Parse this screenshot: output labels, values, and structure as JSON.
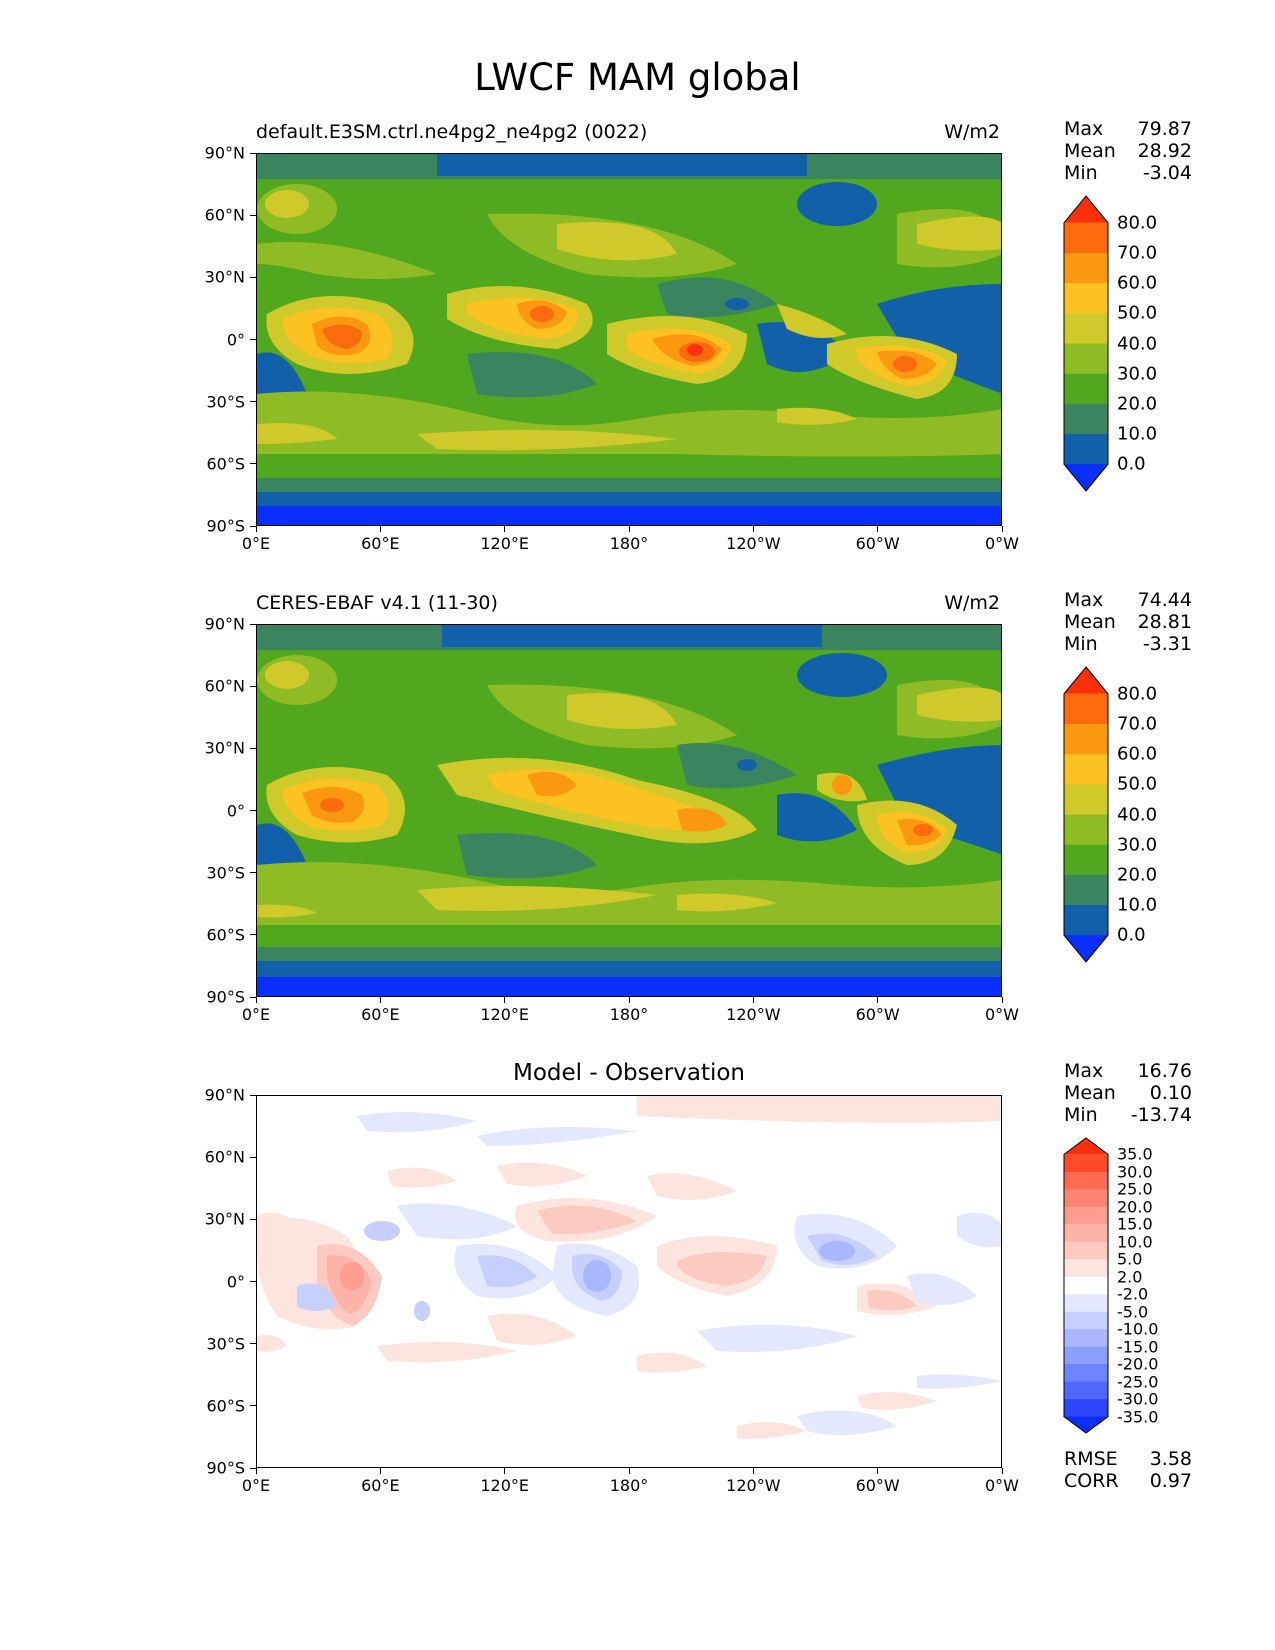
{
  "title": "LWCF MAM global",
  "axes": {
    "lat_ticks": [
      "90°N",
      "60°N",
      "30°N",
      "0°",
      "30°S",
      "60°S",
      "90°S"
    ],
    "lon_ticks": [
      "0°E",
      "60°E",
      "120°E",
      "180°",
      "120°W",
      "60°W",
      "0°W"
    ]
  },
  "panels": [
    {
      "title_left": "default.E3SM.ctrl.ne4pg2_ne4pg2 (0022)",
      "title_right": "W/m2",
      "stats": [
        {
          "label": "Max",
          "value": "79.87"
        },
        {
          "label": "Mean",
          "value": "28.92"
        },
        {
          "label": "Min",
          "value": "-3.04"
        }
      ],
      "colorbar": {
        "labels": [
          "80.0",
          "70.0",
          "60.0",
          "50.0",
          "40.0",
          "30.0",
          "20.0",
          "10.0",
          "0.0"
        ],
        "colors": [
          "#fe3009",
          "#fb6a0c",
          "#fb980f",
          "#fbc221",
          "#cfc92a",
          "#8fbc24",
          "#51a81e",
          "#3a8560",
          "#1260aa",
          "#0a2ffc"
        ]
      }
    },
    {
      "title_left": "CERES-EBAF v4.1 (11-30)",
      "title_right": "W/m2",
      "stats": [
        {
          "label": "Max",
          "value": "74.44"
        },
        {
          "label": "Mean",
          "value": "28.81"
        },
        {
          "label": "Min",
          "value": "-3.31"
        }
      ],
      "colorbar": {
        "labels": [
          "80.0",
          "70.0",
          "60.0",
          "50.0",
          "40.0",
          "30.0",
          "20.0",
          "10.0",
          "0.0"
        ],
        "colors": [
          "#fe3009",
          "#fb6a0c",
          "#fb980f",
          "#fbc221",
          "#cfc92a",
          "#8fbc24",
          "#51a81e",
          "#3a8560",
          "#1260aa",
          "#0a2ffc"
        ]
      }
    },
    {
      "title_center": "Model - Observation",
      "stats": [
        {
          "label": "Max",
          "value": "16.76"
        },
        {
          "label": "Mean",
          "value": "0.10"
        },
        {
          "label": "Min",
          "value": "-13.74"
        }
      ],
      "colorbar": {
        "labels": [
          "35.0",
          "30.0",
          "25.0",
          "20.0",
          "15.0",
          "10.0",
          "5.0",
          "2.0",
          "-2.0",
          "-5.0",
          "-10.0",
          "-15.0",
          "-20.0",
          "-25.0",
          "-30.0",
          "-35.0"
        ],
        "colors": [
          "#fe3009",
          "#fe4b2c",
          "#fe6a52",
          "#fd8472",
          "#fd9d8f",
          "#fcb3a8",
          "#fccac1",
          "#fde4df",
          "#ffffff",
          "#e3e8fe",
          "#c6cffe",
          "#aab7fe",
          "#8c9efe",
          "#6e84fe",
          "#4f67fe",
          "#2e47fe",
          "#0a2ffc"
        ]
      },
      "metrics": [
        {
          "label": "RMSE",
          "value": "3.58"
        },
        {
          "label": "CORR",
          "value": "0.97"
        }
      ]
    }
  ]
}
